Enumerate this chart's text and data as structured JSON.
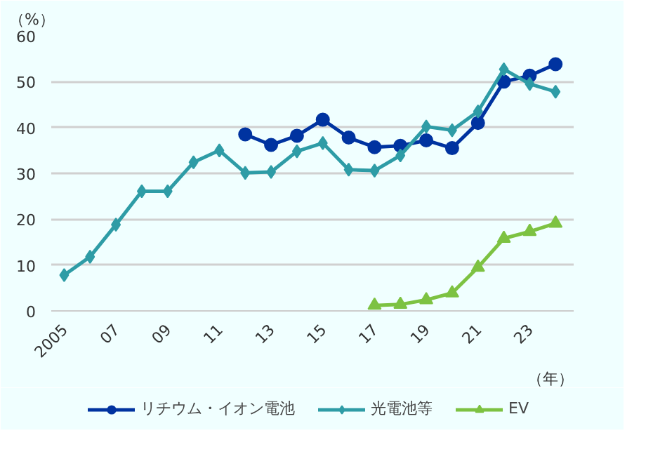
{
  "chart_data": {
    "type": "line",
    "ylabel": "（%）",
    "xlabel": "（年）",
    "xlim": [
      2004.5,
      2024.7
    ],
    "ylim": [
      0,
      60
    ],
    "yticks": [
      0,
      10,
      20,
      30,
      40,
      50,
      60
    ],
    "xticks": [
      2005,
      {
        "value": 2007,
        "label": "07"
      },
      {
        "value": 2009,
        "label": "09"
      },
      {
        "value": 2011,
        "label": "11"
      },
      {
        "value": 2013,
        "label": "13"
      },
      {
        "value": 2015,
        "label": "15"
      },
      {
        "value": 2017,
        "label": "17"
      },
      {
        "value": 2019,
        "label": "19"
      },
      {
        "value": 2021,
        "label": "21"
      },
      {
        "value": 2023,
        "label": "23"
      }
    ],
    "grid": "y",
    "legend": "bottom",
    "series": [
      {
        "name": "リチウム・イオン電池",
        "color": "#0033a0",
        "marker": "circle",
        "x": [
          2012,
          2013,
          2014,
          2015,
          2016,
          2017,
          2018,
          2019,
          2020,
          2021,
          2022,
          2023,
          2024
        ],
        "values": [
          38.5,
          36.2,
          38.2,
          41.7,
          37.8,
          35.7,
          36,
          37.2,
          35.5,
          41,
          50,
          51.3,
          53.8
        ]
      },
      {
        "name": "光電池等",
        "color": "#2e9ca6",
        "marker": "diamond",
        "x": [
          2005,
          2006,
          2007,
          2008,
          2009,
          2010,
          2011,
          2012,
          2013,
          2014,
          2015,
          2016,
          2017,
          2018,
          2019,
          2020,
          2021,
          2022,
          2023,
          2024
        ],
        "values": [
          7.8,
          11.8,
          18.8,
          26.1,
          26.1,
          32.4,
          35,
          30.1,
          30.3,
          34.8,
          36.6,
          30.8,
          30.6,
          33.9,
          40.2,
          39.4,
          43.5,
          52.7,
          49.5,
          47.8
        ]
      },
      {
        "name": "EV",
        "color": "#7dc242",
        "marker": "triangle",
        "x": [
          2017,
          2018,
          2019,
          2020,
          2021,
          2022,
          2023,
          2024
        ],
        "values": [
          1.2,
          1.4,
          2.4,
          3.9,
          9.5,
          15.8,
          17.3,
          19.1
        ]
      }
    ]
  }
}
